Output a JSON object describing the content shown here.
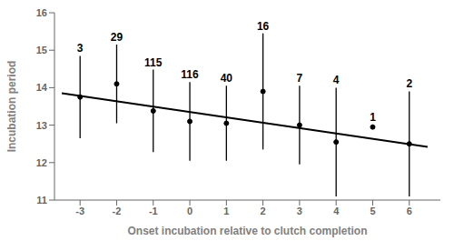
{
  "chart_data": {
    "type": "scatter",
    "xlabel": "Onset incubation relative to clutch completion",
    "ylabel": "Incubation period",
    "xlim": [
      -3.7,
      6.85
    ],
    "xticks": [
      -3,
      -2,
      -1,
      0,
      1,
      2,
      3,
      4,
      5,
      6
    ],
    "ylim": [
      11,
      16
    ],
    "yticks": [
      11,
      12,
      13,
      14,
      15,
      16
    ],
    "grid": false,
    "series": [
      {
        "type": "scatter",
        "color": "#000000",
        "marker": "circle",
        "x": [
          -3,
          -2,
          -1,
          0,
          1,
          2,
          3,
          4,
          5,
          6
        ],
        "values": [
          13.75,
          14.1,
          13.38,
          13.1,
          13.05,
          13.9,
          13.0,
          12.55,
          12.95,
          12.5
        ],
        "errors": [
          1.1,
          1.05,
          1.1,
          1.05,
          1.0,
          1.55,
          1.05,
          1.45,
          0.0,
          1.4
        ],
        "sample_sizes": [
          "3",
          "29",
          "115",
          "116",
          "40",
          "16",
          "7",
          "4",
          "1",
          "2"
        ]
      },
      {
        "type": "line",
        "color": "#000000",
        "line_style": "solid",
        "x": [
          -3.5,
          6.5
        ],
        "values": [
          13.85,
          12.42
        ]
      }
    ]
  }
}
